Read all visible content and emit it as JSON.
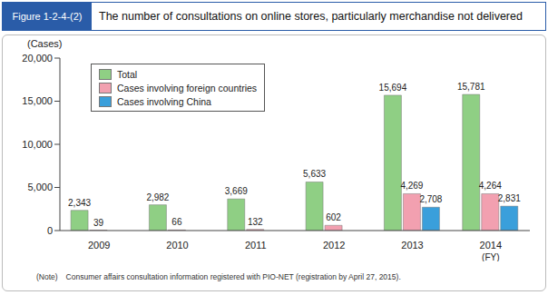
{
  "chart_data": {
    "type": "bar",
    "figure_label": "Figure 1-2-4-(2)",
    "title": "The number of consultations on online stores, particularly merchandise not delivered",
    "y_label": "(Cases)",
    "x_label": "(FY)",
    "note": "(Note)　Consumer affairs consultation information registered with PIO-NET (registration by April 27, 2015).",
    "categories": [
      "2009",
      "2010",
      "2011",
      "2012",
      "2013",
      "2014"
    ],
    "series": [
      {
        "name": "Total",
        "color": "#8fcf84",
        "values": [
          2343,
          2982,
          3669,
          5633,
          15694,
          15781
        ],
        "value_labels": [
          "2,343",
          "2,982",
          "3,669",
          "5,633",
          "15,694",
          "15,781"
        ]
      },
      {
        "name": "Cases involving foreign countries",
        "color": "#f2a0b0",
        "values": [
          39,
          66,
          132,
          602,
          4269,
          4264
        ],
        "value_labels": [
          "39",
          "66",
          "132",
          "602",
          "4,269",
          "4,264"
        ]
      },
      {
        "name": "Cases involving China",
        "color": "#3a9fdb",
        "values": [
          null,
          null,
          null,
          null,
          2708,
          2831
        ],
        "value_labels": [
          null,
          null,
          null,
          null,
          "2,708",
          "2,831"
        ]
      }
    ],
    "ylim": [
      0,
      20000
    ],
    "yticks": [
      {
        "value": 0,
        "label": "0"
      },
      {
        "value": 5000,
        "label": "5,000"
      },
      {
        "value": 10000,
        "label": "10,000"
      },
      {
        "value": 15000,
        "label": "15,000"
      },
      {
        "value": 20000,
        "label": "20,000"
      }
    ],
    "grid": false,
    "legend": "upper left",
    "data_labels": true
  }
}
